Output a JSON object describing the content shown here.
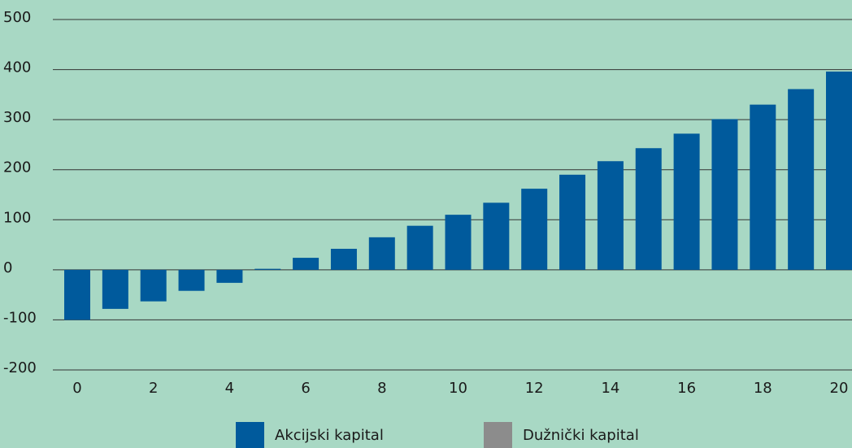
{
  "chart_data": {
    "type": "bar",
    "stacked": true,
    "categories": [
      0,
      null,
      2,
      null,
      4,
      null,
      6,
      null,
      8,
      null,
      10,
      null,
      12,
      null,
      14,
      null,
      16,
      null,
      18,
      null,
      20
    ],
    "series": [
      {
        "name": "Akcijski kapital",
        "color": "#005a9c",
        "values": [
          -100,
          -78,
          -63,
          -42,
          -26,
          2,
          24,
          42,
          65,
          88,
          110,
          134,
          162,
          190,
          217,
          243,
          272,
          301,
          330,
          361,
          396
        ]
      },
      {
        "name": "Dužnički kapital",
        "color": "#8c8c8c",
        "values": [
          0,
          0,
          0,
          0,
          0,
          0,
          0,
          0,
          0,
          0,
          0,
          0,
          0,
          0,
          0,
          0,
          0,
          0,
          0,
          0,
          0
        ]
      }
    ],
    "ylim": [
      -200,
      500
    ],
    "yticks": [
      -200,
      -100,
      0,
      100,
      200,
      300,
      400,
      500
    ],
    "grid": true,
    "legend": "bottom"
  }
}
